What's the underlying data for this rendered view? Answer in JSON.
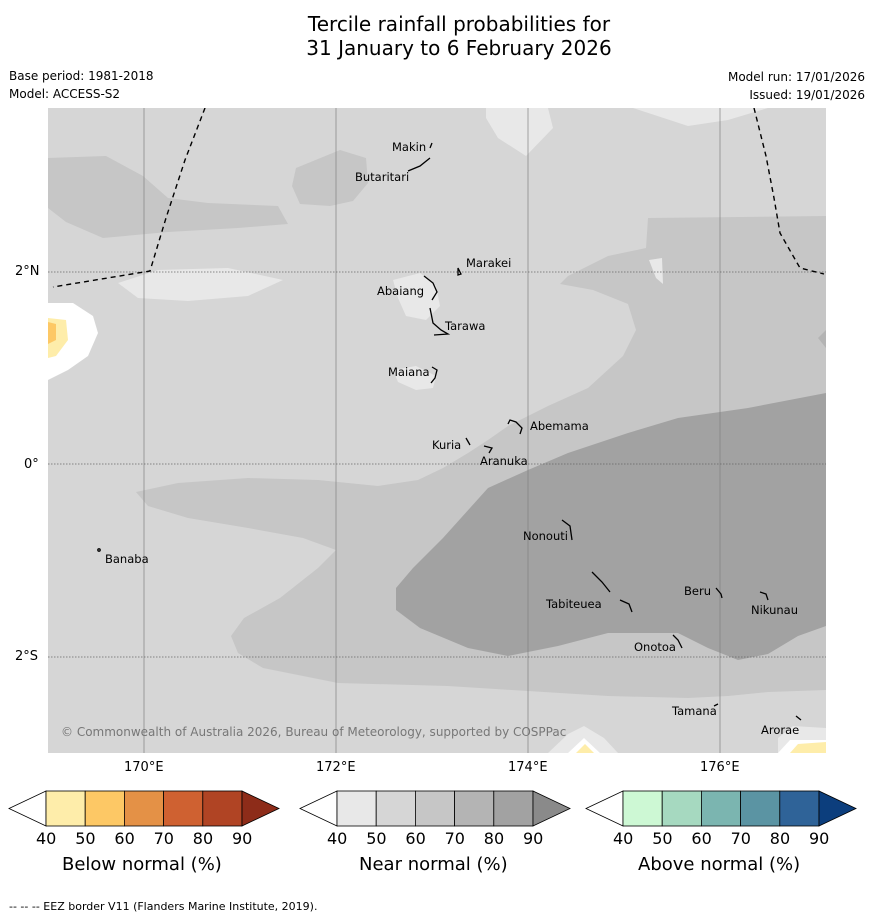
{
  "title": {
    "line1": "Tercile rainfall probabilities for",
    "line2": "31 January to 6 February 2026"
  },
  "meta": {
    "base_period": "Base period: 1981-2018",
    "model": "Model: ACCESS-S2",
    "model_run": "Model run: 17/01/2026",
    "issued": "Issued: 19/01/2026"
  },
  "map": {
    "copyright": "© Commonwealth of Australia 2026, Bureau of Meteorology, supported by COSPPac",
    "latitude_labels": [
      "2°N",
      "0°",
      "2°S"
    ],
    "longitude_labels": [
      "170°E",
      "172°E",
      "174°E",
      "176°E"
    ],
    "islands": [
      {
        "name": "Makin"
      },
      {
        "name": "Butaritari"
      },
      {
        "name": "Marakei"
      },
      {
        "name": "Abaiang"
      },
      {
        "name": "Tarawa"
      },
      {
        "name": "Maiana"
      },
      {
        "name": "Abemama"
      },
      {
        "name": "Kuria"
      },
      {
        "name": "Aranuka"
      },
      {
        "name": "Banaba"
      },
      {
        "name": "Nonouti"
      },
      {
        "name": "Beru"
      },
      {
        "name": "Tabiteuea"
      },
      {
        "name": "Nikunau"
      },
      {
        "name": "Onotoa"
      },
      {
        "name": "Tamana"
      },
      {
        "name": "Arorae"
      }
    ]
  },
  "colorbars": [
    {
      "label": "Below normal (%)",
      "ticks": [
        "40",
        "50",
        "60",
        "70",
        "80",
        "90"
      ],
      "colors": [
        "#ffffff",
        "#feedaa",
        "#fdc865",
        "#e49146",
        "#cf6131",
        "#b04424",
        "#8d2c19"
      ]
    },
    {
      "label": "Near normal (%)",
      "ticks": [
        "40",
        "50",
        "60",
        "70",
        "80",
        "90"
      ],
      "colors": [
        "#ffffff",
        "#e8e8e8",
        "#d6d6d6",
        "#c6c6c6",
        "#b4b4b4",
        "#a2a2a2",
        "#8a8a8a"
      ]
    },
    {
      "label": "Above normal (%)",
      "ticks": [
        "40",
        "50",
        "60",
        "70",
        "80",
        "90"
      ],
      "colors": [
        "#ffffff",
        "#cdf8d4",
        "#a6d9c0",
        "#7bb5b0",
        "#5b94a3",
        "#2f6398",
        "#0c3e7d"
      ]
    }
  ],
  "footer": "--  --  -- EEZ border V11 (Flanders Marine Institute, 2019)."
}
